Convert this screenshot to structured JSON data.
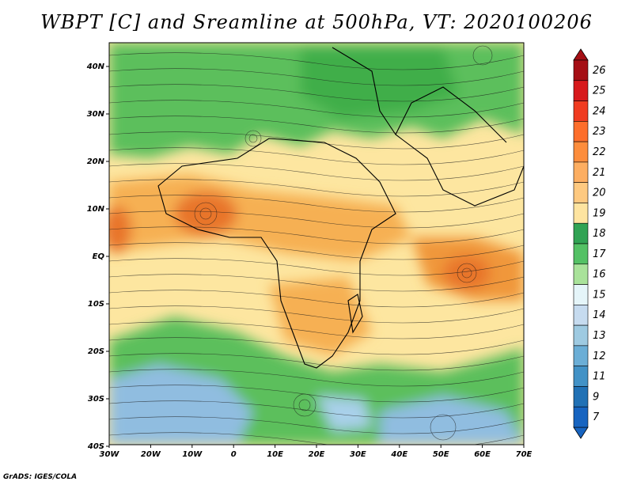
{
  "title": "WBPT [C] and Sreamline at 500hPa, VT: 2020100206",
  "credit": "GrADS: IGES/COLA",
  "x_ticks": [
    "30W",
    "20W",
    "10W",
    "0",
    "10E",
    "20E",
    "30E",
    "40E",
    "50E",
    "60E",
    "70E"
  ],
  "y_ticks": [
    "40N",
    "30N",
    "20N",
    "10N",
    "EQ",
    "10S",
    "20S",
    "30S",
    "40S"
  ],
  "colorbar": {
    "levels": [
      "26",
      "25",
      "24",
      "23",
      "22",
      "21",
      "20",
      "19",
      "18",
      "17",
      "16",
      "15",
      "14",
      "13",
      "12",
      "11",
      "9",
      "7"
    ],
    "colors": [
      "#a50f15",
      "#d7191c",
      "#f03b20",
      "#fd6e2b",
      "#fd8d3c",
      "#fdae61",
      "#fec980",
      "#fee4a0",
      "#31a354",
      "#54c165",
      "#a9e29a",
      "#e5f5f9",
      "#c6dbef",
      "#9ecae1",
      "#6baed6",
      "#4292c6",
      "#2171b5",
      "#1764c0"
    ]
  },
  "colors": {
    "green": "#5cbf5c",
    "yellow": "#fde6a0",
    "orange": "#f6b053",
    "deep_orange": "#e8742a",
    "blue": "#90bde0"
  }
}
